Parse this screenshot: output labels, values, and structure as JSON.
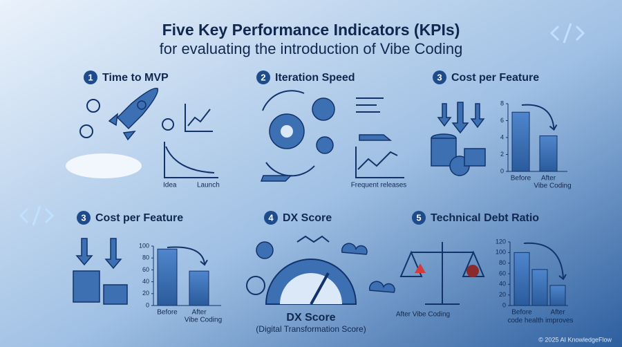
{
  "header": {
    "title": "Five Key Performance Indicators (KPIs)",
    "subtitle": "for evaluating the introduction of Vibe Coding"
  },
  "panels": [
    {
      "number": "1",
      "title": "Time to MVP",
      "labels": [
        "Idea",
        "Launch"
      ]
    },
    {
      "number": "2",
      "title": "Iteration Speed",
      "labels": [
        "Frequent releases"
      ]
    },
    {
      "number": "3",
      "title": "Cost per Feature",
      "chart": {
        "ylim": [
          0,
          8
        ],
        "yticks": [
          0,
          2,
          4,
          6,
          8
        ],
        "values": [
          7,
          4.2
        ],
        "labels": [
          [
            "Before"
          ],
          [
            "After",
            "Vibe Coding"
          ]
        ]
      }
    },
    {
      "number": "3",
      "title": "Cost per Feature",
      "chart": {
        "ylim": [
          0,
          100
        ],
        "yticks": [
          0,
          20,
          40,
          60,
          80,
          100
        ],
        "values": [
          95,
          58
        ],
        "labels": [
          [
            "Before"
          ],
          [
            "After",
            "Vibe Coding"
          ]
        ]
      }
    },
    {
      "number": "4",
      "title": "DX Score",
      "labels": [
        "DX Score",
        "(Digital Transformation Score)"
      ]
    },
    {
      "number": "5",
      "title": "Technical Debt Ratio",
      "labels": [
        "After Vibe Coding"
      ],
      "chart": {
        "ylim": [
          0,
          120
        ],
        "yticks": [
          0,
          20,
          40,
          60,
          80,
          100,
          120
        ],
        "values": [
          100,
          68,
          38
        ],
        "labels": [
          [
            "Before"
          ],
          [],
          [
            "After"
          ]
        ],
        "caption": "code health improves"
      }
    }
  ],
  "footer": "© 2025 AI KnowledgeFlow"
}
